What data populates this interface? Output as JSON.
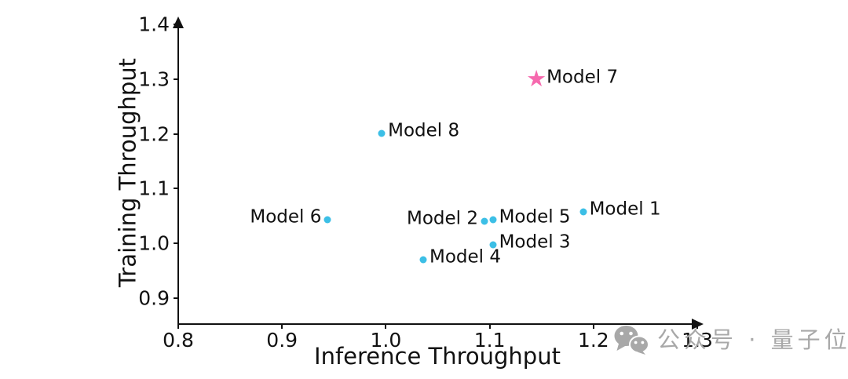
{
  "chart_data": {
    "type": "scatter",
    "xlabel": "Inference Throughput",
    "ylabel": "Training Throughput",
    "xlim": [
      0.8,
      1.33
    ],
    "ylim": [
      0.85,
      1.42
    ],
    "x_ticks": [
      "0.8",
      "0.9",
      "1.0",
      "1.1",
      "1.2",
      "1.3"
    ],
    "x_tick_values": [
      0.8,
      0.9,
      1.0,
      1.1,
      1.2,
      1.3
    ],
    "y_ticks": [
      "0.9",
      "1.0",
      "1.1",
      "1.2",
      "1.3",
      "1.4"
    ],
    "y_tick_values": [
      0.9,
      1.0,
      1.1,
      1.2,
      1.3,
      1.4
    ],
    "grid": false,
    "legend": "none",
    "axis_color": "#111111",
    "dot_color": "#3cbfe6",
    "star_color": "#f669ae",
    "star_glyph": "★",
    "points": [
      {
        "label": "Model 1",
        "x": 1.19,
        "y": 1.057,
        "marker": "dot",
        "label_side": "right"
      },
      {
        "label": "Model 2",
        "x": 1.095,
        "y": 1.04,
        "marker": "dot",
        "label_side": "left"
      },
      {
        "label": "Model 3",
        "x": 1.103,
        "y": 0.997,
        "marker": "dot",
        "label_side": "right"
      },
      {
        "label": "Model 4",
        "x": 1.036,
        "y": 0.97,
        "marker": "dot",
        "label_side": "right"
      },
      {
        "label": "Model 5",
        "x": 1.103,
        "y": 1.043,
        "marker": "dot",
        "label_side": "right"
      },
      {
        "label": "Model 6",
        "x": 0.944,
        "y": 1.043,
        "marker": "dot",
        "label_side": "left"
      },
      {
        "label": "Model 7",
        "x": 1.145,
        "y": 1.298,
        "marker": "star",
        "label_side": "right"
      },
      {
        "label": "Model 8",
        "x": 0.996,
        "y": 1.201,
        "marker": "dot",
        "label_side": "right"
      }
    ]
  },
  "watermark": {
    "icon": "wechat-icon",
    "text": "公众号 · 量子位",
    "color": "#a8a8a8"
  }
}
